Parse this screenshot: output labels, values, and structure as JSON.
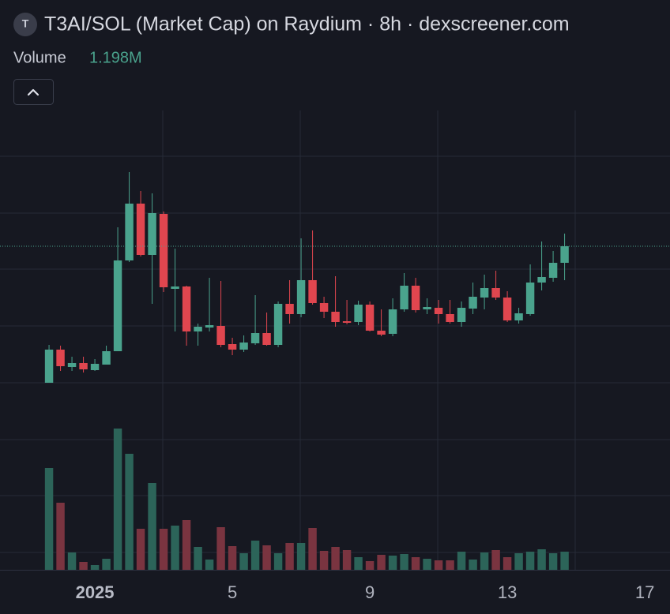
{
  "chart_data": {
    "type": "candlestick",
    "icon_letter": "T",
    "title": "T3AI/SOL (Market Cap) on Raydium · 8h · dexscreener.com",
    "volume_label": "Volume",
    "volume_value_label": "1.198M",
    "up_color": "#4aa38d",
    "down_color": "#e0464f",
    "volume_up_color": "#2c6459",
    "volume_down_color": "#7a3440",
    "x": [
      0,
      1,
      2,
      3,
      4,
      5,
      6,
      7,
      8,
      9,
      10,
      11,
      12,
      13,
      14,
      15,
      16,
      17,
      18,
      19,
      20,
      21,
      22,
      23,
      24,
      25,
      26,
      27,
      28,
      29,
      30,
      31,
      32,
      33,
      34,
      35,
      36,
      37,
      38,
      39,
      40,
      41,
      42,
      43,
      44,
      45
    ],
    "open": [
      55,
      97,
      75,
      80,
      71,
      78,
      95,
      210,
      282,
      217,
      269,
      174,
      177,
      120,
      125,
      127,
      104,
      97,
      105,
      118,
      103,
      155,
      142,
      185,
      156,
      145,
      133,
      132,
      154,
      121,
      117,
      148,
      178,
      148,
      150,
      142,
      132,
      149,
      163,
      175,
      163,
      134,
      142,
      182,
      188,
      207
    ],
    "high": [
      103,
      102,
      88,
      88,
      85,
      102,
      252,
      322,
      298,
      295,
      272,
      225,
      178,
      130,
      188,
      184,
      112,
      115,
      166,
      144,
      158,
      185,
      238,
      248,
      164,
      190,
      160,
      159,
      158,
      148,
      162,
      194,
      188,
      162,
      160,
      160,
      158,
      182,
      192,
      197,
      171,
      150,
      205,
      234,
      222,
      244
    ],
    "low": [
      55,
      70,
      70,
      68,
      70,
      78,
      95,
      208,
      215,
      155,
      170,
      120,
      102,
      102,
      120,
      100,
      90,
      94,
      103,
      102,
      100,
      130,
      138,
      154,
      137,
      126,
      129,
      128,
      120,
      114,
      114,
      145,
      144,
      142,
      130,
      130,
      126,
      142,
      148,
      160,
      132,
      130,
      140,
      172,
      183,
      185
    ],
    "close": [
      97,
      76,
      80,
      72,
      79,
      95,
      210,
      282,
      217,
      270,
      176,
      177,
      120,
      126,
      128,
      103,
      97,
      106,
      118,
      103,
      155,
      142,
      185,
      156,
      145,
      132,
      131,
      154,
      121,
      116,
      148,
      178,
      147,
      151,
      142,
      132,
      150,
      164,
      175,
      163,
      134,
      143,
      182,
      189,
      207,
      228
    ],
    "volume": [
      129,
      85,
      22,
      10,
      6,
      14,
      179,
      147,
      52,
      110,
      52,
      56,
      63,
      29,
      13,
      54,
      30,
      21,
      37,
      31,
      21,
      34,
      34,
      53,
      24,
      29,
      25,
      16,
      11,
      19,
      18,
      20,
      16,
      14,
      12,
      12,
      23,
      13,
      22,
      25,
      16,
      21,
      23,
      26,
      21,
      23
    ],
    "xlim": [
      -4.28,
      54.2
    ],
    "xticks": [
      {
        "value": 4,
        "label": "2025"
      },
      {
        "value": 16,
        "label": "5"
      },
      {
        "value": 28,
        "label": "9"
      },
      {
        "value": 40,
        "label": "13"
      },
      {
        "value": 52,
        "label": "17"
      }
    ],
    "ylim": [
      0,
      400
    ],
    "volume_ylim": [
      0,
      200
    ]
  }
}
